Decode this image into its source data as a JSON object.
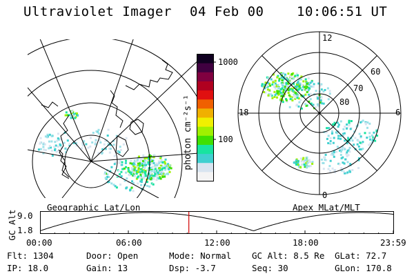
{
  "header": {
    "instrument": "Ultraviolet Imager",
    "date": "04 Feb 00",
    "time": "10:06:51 UT"
  },
  "colorbar": {
    "label": "photon cm⁻²s⁻¹",
    "ticks": [
      "1000",
      "100"
    ],
    "colors": [
      "#f4f4f4",
      "#d8e4f0",
      "#40d0d0",
      "#18e4a0",
      "#40e000",
      "#a0f000",
      "#f0f000",
      "#f0b000",
      "#f06000",
      "#e01010",
      "#b00020",
      "#800040",
      "#400040",
      "#100020"
    ]
  },
  "geo_panel": {
    "label": "Geographic Lat/Lon"
  },
  "mlt_panel": {
    "label": "Apex MLat/MLT",
    "mlt_labels": [
      "12",
      "18",
      "6",
      "0"
    ],
    "lat_labels": [
      "60",
      "70",
      "80"
    ]
  },
  "timeline": {
    "axis_label": "GC Alt",
    "y_ticks": [
      "9.0",
      "1.8"
    ],
    "x_ticks": [
      "00:00",
      "06:00",
      "12:00",
      "18:00",
      "23:59"
    ],
    "current_hours": 10.11,
    "marker_color": "#d00000"
  },
  "info": {
    "flt": "Flt: 1304",
    "ip": "IP: 18.0",
    "door": "Door: Open",
    "gain": "Gain: 13",
    "mode": "Mode: Normal",
    "dsp": "Dsp:   -3.7",
    "gcalt": "GC Alt: 8.5 Re",
    "seq": "Seq: 30",
    "glat": "GLat:  72.7",
    "glon": "GLon: 170.8"
  }
}
